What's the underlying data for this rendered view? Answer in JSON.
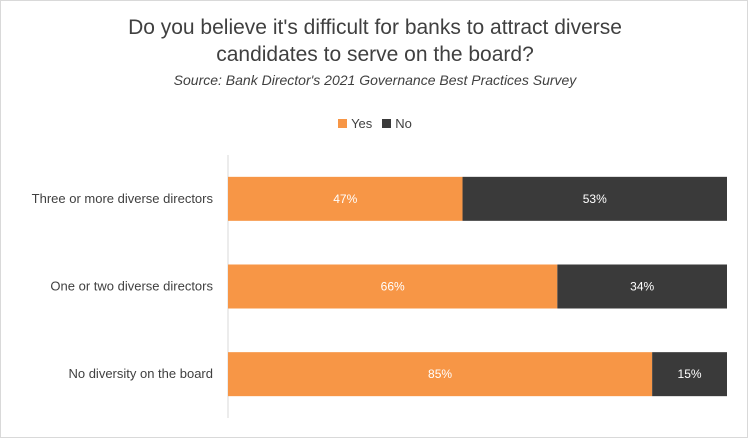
{
  "chart_data": {
    "type": "bar",
    "orientation": "horizontal",
    "stacked": true,
    "percent": true,
    "title": "Do you believe it's difficult for banks to attract diverse\ncandidates to serve on the board?",
    "subtitle": "Source: Bank Director's 2021 Governance Best Practices Survey",
    "categories": [
      "Three or more diverse directors",
      "One or two diverse directors",
      "No diversity on the board"
    ],
    "series": [
      {
        "name": "Yes",
        "values": [
          47,
          66,
          85
        ],
        "labels": [
          "47%",
          "66%",
          "85%"
        ],
        "color": "#f79646"
      },
      {
        "name": "No",
        "values": [
          53,
          34,
          15
        ],
        "labels": [
          "53%",
          "34%",
          "15%"
        ],
        "color": "#3a3a3a"
      }
    ],
    "xlim": [
      0,
      100
    ],
    "legend_position": "top",
    "grid": false
  }
}
